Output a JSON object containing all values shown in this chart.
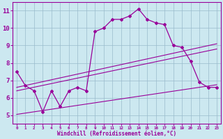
{
  "title": "",
  "xlabel": "Windchill (Refroidissement éolien,°C)",
  "ylabel": "",
  "bg_color": "#cce8f0",
  "line_color": "#990099",
  "xlim": [
    -0.5,
    23.5
  ],
  "ylim": [
    4.5,
    11.5
  ],
  "yticks": [
    5,
    6,
    7,
    8,
    9,
    10,
    11
  ],
  "xticks": [
    0,
    1,
    2,
    3,
    4,
    5,
    6,
    7,
    8,
    9,
    10,
    11,
    12,
    13,
    14,
    15,
    16,
    17,
    18,
    19,
    20,
    21,
    22,
    23
  ],
  "line1_x": [
    0,
    1,
    2,
    3,
    4,
    5,
    6,
    7,
    8,
    9,
    10,
    11,
    12,
    13,
    14,
    15,
    16,
    17,
    18,
    19,
    20,
    21,
    22,
    23
  ],
  "line1_y": [
    7.5,
    6.7,
    6.4,
    5.2,
    6.4,
    5.5,
    6.4,
    6.6,
    6.4,
    9.8,
    10.0,
    10.5,
    10.5,
    10.7,
    11.1,
    10.5,
    10.3,
    10.2,
    9.0,
    8.9,
    8.1,
    6.9,
    6.6,
    6.6
  ],
  "line2_x": [
    0,
    23
  ],
  "line2_y": [
    6.6,
    9.1
  ],
  "line3_x": [
    0,
    23
  ],
  "line3_y": [
    6.4,
    8.8
  ],
  "line4_x": [
    0,
    23
  ],
  "line4_y": [
    5.05,
    6.75
  ],
  "grid_color": "#99bbcc",
  "marker": "D",
  "marker_size": 2.0,
  "xlabel_fontsize": 5.5,
  "tick_fontsize_y": 6.5,
  "tick_fontsize_x": 4.2
}
